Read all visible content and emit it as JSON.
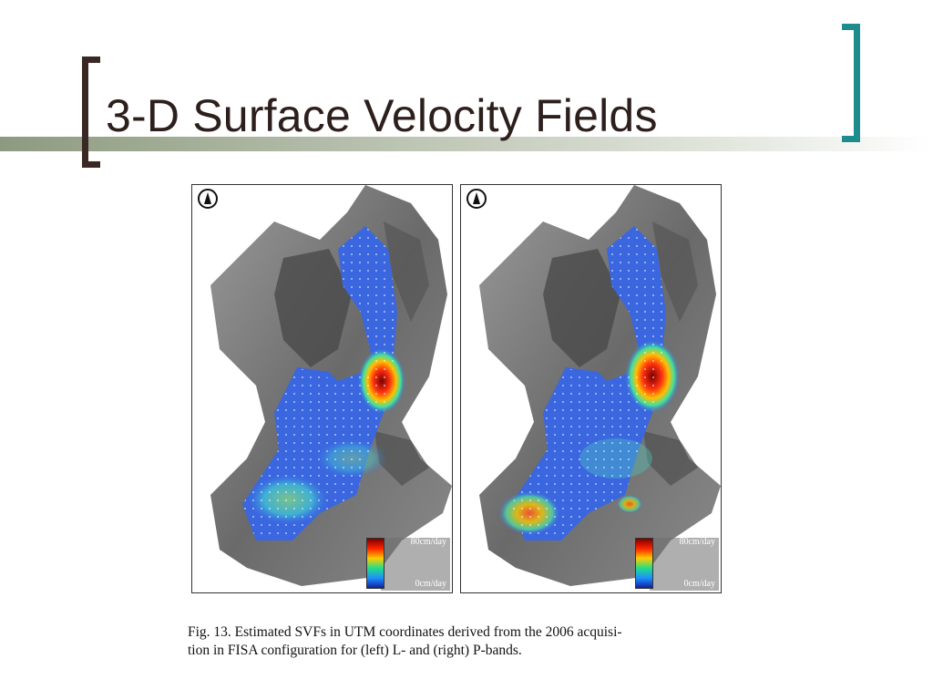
{
  "slide": {
    "title": "3-D Surface Velocity Fields"
  },
  "figure": {
    "panels": [
      {
        "name": "left",
        "band": "L",
        "colorbar_max": "80cm/day",
        "colorbar_min": "0cm/day"
      },
      {
        "name": "right",
        "band": "P",
        "colorbar_max": "80cm/day",
        "colorbar_min": "0cm/day"
      }
    ],
    "caption_line1": "Fig. 13.    Estimated SVFs in UTM coordinates derived from the 2006 acquisi-",
    "caption_line2": "tion in FISA configuration for (left) L- and (right) P-bands."
  },
  "colors": {
    "title": "#2c1f1c",
    "left_bracket": "#3a2824",
    "right_bracket": "#1e8c8c",
    "accent_bar": "#8e9a80"
  }
}
